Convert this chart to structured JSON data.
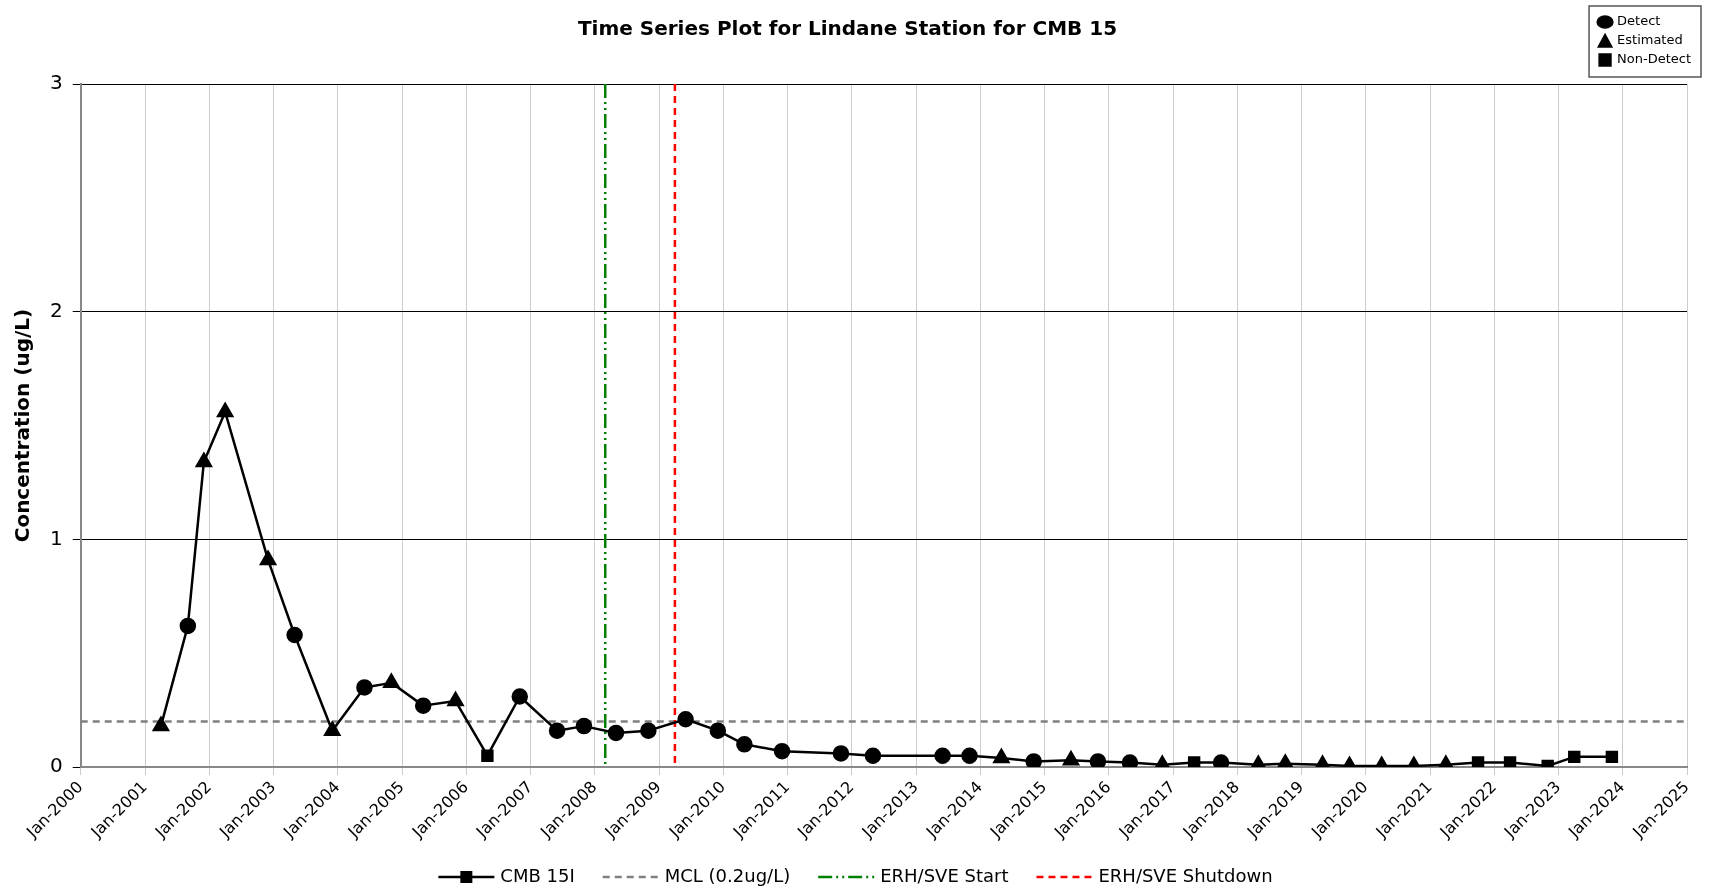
{
  "chart_data": {
    "type": "line",
    "title": "Time Series Plot for Lindane Station for CMB 15",
    "ylabel": "Concentration (ug/L)",
    "xlim": [
      "2000-01",
      "2025-01"
    ],
    "xticks": [
      {
        "value": "2000-01",
        "label": "Jan-2000"
      },
      {
        "value": "2001-01",
        "label": "Jan-2001"
      },
      {
        "value": "2002-01",
        "label": "Jan-2002"
      },
      {
        "value": "2003-01",
        "label": "Jan-2003"
      },
      {
        "value": "2004-01",
        "label": "Jan-2004"
      },
      {
        "value": "2005-01",
        "label": "Jan-2005"
      },
      {
        "value": "2006-01",
        "label": "Jan-2006"
      },
      {
        "value": "2007-01",
        "label": "Jan-2007"
      },
      {
        "value": "2008-01",
        "label": "Jan-2008"
      },
      {
        "value": "2009-01",
        "label": "Jan-2009"
      },
      {
        "value": "2010-01",
        "label": "Jan-2010"
      },
      {
        "value": "2011-01",
        "label": "Jan-2011"
      },
      {
        "value": "2012-01",
        "label": "Jan-2012"
      },
      {
        "value": "2013-01",
        "label": "Jan-2013"
      },
      {
        "value": "2014-01",
        "label": "Jan-2014"
      },
      {
        "value": "2015-01",
        "label": "Jan-2015"
      },
      {
        "value": "2016-01",
        "label": "Jan-2016"
      },
      {
        "value": "2017-01",
        "label": "Jan-2017"
      },
      {
        "value": "2018-01",
        "label": "Jan-2018"
      },
      {
        "value": "2019-01",
        "label": "Jan-2019"
      },
      {
        "value": "2020-01",
        "label": "Jan-2020"
      },
      {
        "value": "2021-01",
        "label": "Jan-2021"
      },
      {
        "value": "2022-01",
        "label": "Jan-2022"
      },
      {
        "value": "2023-01",
        "label": "Jan-2023"
      },
      {
        "value": "2024-01",
        "label": "Jan-2024"
      },
      {
        "value": "2025-01",
        "label": "Jan-2025"
      }
    ],
    "ylim": [
      0,
      3
    ],
    "yticks": [
      0,
      1,
      2,
      3
    ],
    "grid": true,
    "legend": "bottom",
    "series": [
      {
        "name": "CMB 15I",
        "color": "#000000",
        "marker": "none",
        "x": [
          "2001-04",
          "2001-09",
          "2001-12",
          "2002-04",
          "2002-12",
          "2003-05",
          "2003-12",
          "2004-06",
          "2004-11",
          "2005-05",
          "2005-11",
          "2006-05",
          "2006-11",
          "2007-06",
          "2007-11",
          "2008-05",
          "2008-11",
          "2009-06",
          "2009-12",
          "2010-05",
          "2010-12",
          "2011-11",
          "2012-05",
          "2013-06",
          "2013-11",
          "2014-05",
          "2014-11",
          "2015-06",
          "2015-11",
          "2016-05",
          "2016-11",
          "2017-05",
          "2017-10",
          "2018-05",
          "2018-10",
          "2019-05",
          "2019-10",
          "2020-04",
          "2020-10",
          "2021-04",
          "2021-10",
          "2022-04",
          "2022-11",
          "2023-04",
          "2023-11"
        ],
        "values": [
          0.18,
          0.62,
          1.34,
          1.56,
          0.91,
          0.58,
          0.16,
          0.35,
          0.37,
          0.27,
          0.29,
          0.05,
          0.31,
          0.16,
          0.18,
          0.15,
          0.16,
          0.21,
          0.16,
          0.1,
          0.07,
          0.06,
          0.05,
          0.05,
          0.05,
          0.04,
          0.025,
          0.03,
          0.025,
          0.02,
          0.01,
          0.02,
          0.02,
          0.01,
          0.015,
          0.01,
          0.005,
          0.005,
          0.005,
          0.01,
          0.02,
          0.02,
          0.005,
          0.045,
          0.045
        ]
      },
      {
        "name": "Detect",
        "type": "scatter",
        "color": "#000000",
        "marker": "circle",
        "x": [
          "2001-09",
          "2003-05",
          "2004-06",
          "2005-05",
          "2006-11",
          "2007-06",
          "2007-11",
          "2008-05",
          "2008-11",
          "2009-06",
          "2009-12",
          "2010-05",
          "2010-12",
          "2011-11",
          "2012-05",
          "2013-06",
          "2013-11",
          "2014-11",
          "2015-11",
          "2016-05",
          "2017-10"
        ],
        "values": [
          0.62,
          0.58,
          0.35,
          0.27,
          0.31,
          0.16,
          0.18,
          0.15,
          0.16,
          0.21,
          0.16,
          0.1,
          0.07,
          0.06,
          0.05,
          0.05,
          0.05,
          0.025,
          0.025,
          0.02,
          0.02
        ]
      },
      {
        "name": "Estimated",
        "type": "scatter",
        "color": "#000000",
        "marker": "triangle",
        "x": [
          "2001-04",
          "2001-12",
          "2002-04",
          "2002-12",
          "2003-12",
          "2004-11",
          "2005-11",
          "2014-05",
          "2015-06",
          "2016-11",
          "2018-05",
          "2018-10",
          "2019-05",
          "2019-10",
          "2020-04",
          "2020-10",
          "2021-04"
        ],
        "values": [
          0.18,
          1.34,
          1.56,
          0.91,
          0.16,
          0.37,
          0.29,
          0.04,
          0.03,
          0.01,
          0.01,
          0.015,
          0.01,
          0.005,
          0.005,
          0.005,
          0.01
        ]
      },
      {
        "name": "Non-Detect",
        "type": "scatter",
        "color": "#000000",
        "marker": "square",
        "x": [
          "2006-05",
          "2017-05",
          "2021-10",
          "2022-04",
          "2022-11",
          "2023-04",
          "2023-11"
        ],
        "values": [
          0.05,
          0.02,
          0.02,
          0.02,
          0.005,
          0.045,
          0.045
        ]
      }
    ],
    "ref_lines": [
      {
        "axis": "y",
        "value": 0.2,
        "label": "MCL (0.2ug/L)",
        "color": "#808080",
        "line_style": "dashed"
      },
      {
        "axis": "x",
        "value": "2008-03",
        "label": "ERH/SVE Start",
        "color": "#008000",
        "line_style": "dashdotdot"
      },
      {
        "axis": "x",
        "value": "2009-04",
        "label": "ERH/SVE Shutdown",
        "color": "#ff0000",
        "line_style": "dashed"
      }
    ]
  }
}
